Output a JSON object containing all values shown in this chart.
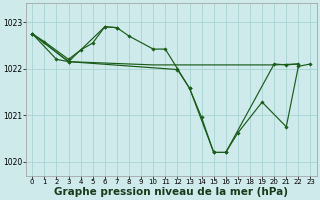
{
  "background_color": "#ceeaea",
  "grid_color": "#aad4d4",
  "line_color": "#1a5c1a",
  "marker_color": "#1a5c1a",
  "xlabel": "Graphe pression niveau de la mer (hPa)",
  "xlabel_fontsize": 7.5,
  "xlim": [
    -0.5,
    23.5
  ],
  "ylim": [
    1019.7,
    1023.4
  ],
  "yticks": [
    1020,
    1021,
    1022,
    1023
  ],
  "xticks": [
    0,
    1,
    2,
    3,
    4,
    5,
    6,
    7,
    8,
    9,
    10,
    11,
    12,
    13,
    14,
    15,
    16,
    17,
    18,
    19,
    20,
    21,
    22,
    23
  ],
  "s1_x": [
    0,
    1,
    3,
    4,
    5,
    6,
    7,
    8,
    10,
    11,
    12,
    13,
    15,
    16,
    20,
    21,
    22
  ],
  "s1_y": [
    1022.75,
    1022.58,
    1022.2,
    1022.4,
    1022.55,
    1022.9,
    1022.88,
    1022.7,
    1022.42,
    1022.42,
    1022.0,
    1021.58,
    1020.2,
    1020.2,
    1022.1,
    1022.08,
    1022.1
  ],
  "s2_x": [
    0,
    2,
    3,
    6,
    7
  ],
  "s2_y": [
    1022.75,
    1022.2,
    1022.15,
    1022.9,
    1022.88
  ],
  "s3_x": [
    0,
    3,
    10,
    20,
    22
  ],
  "s3_y": [
    1022.75,
    1022.15,
    1022.08,
    1022.08,
    1022.1
  ],
  "s4_x": [
    0,
    3,
    12,
    13,
    14,
    15,
    16,
    17,
    19,
    21,
    22,
    23
  ],
  "s4_y": [
    1022.75,
    1022.15,
    1021.98,
    1021.58,
    1020.95,
    1020.2,
    1020.2,
    1020.62,
    1021.28,
    1020.75,
    1022.05,
    1022.1
  ]
}
